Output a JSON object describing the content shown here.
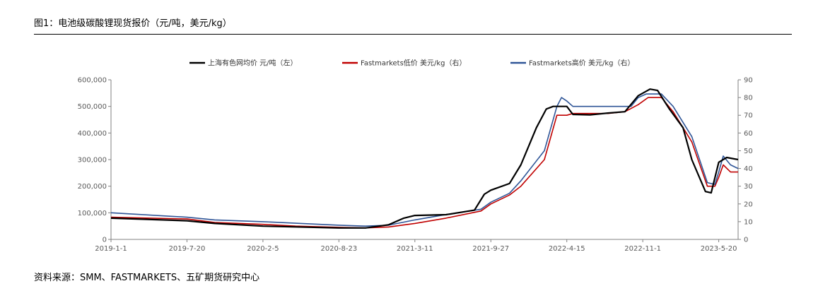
{
  "header": {
    "title": "图1：电池级碳酸锂现货报价（元/吨，美元/kg）"
  },
  "footer": {
    "source": "资料来源：SMM、FASTMARKETS、五矿期货研究中心"
  },
  "chart_data": {
    "type": "line",
    "title": "图1：电池级碳酸锂现货报价（元/吨，美元/kg）",
    "x_ticks": [
      "2019-1-1",
      "2019-7-20",
      "2020-2-5",
      "2020-8-23",
      "2021-3-11",
      "2021-9-27",
      "2022-4-15",
      "2022-11-1",
      "2023-5-20"
    ],
    "x_range": [
      "2019-01-01",
      "2023-07-10"
    ],
    "y_left": {
      "min": 0,
      "max": 600000,
      "ticks": [
        "0",
        "100,000",
        "200,000",
        "300,000",
        "400,000",
        "500,000",
        "600,000"
      ]
    },
    "y_right": {
      "min": 0,
      "max": 90,
      "ticks": [
        "0",
        "10",
        "20",
        "30",
        "40",
        "50",
        "60",
        "70",
        "80",
        "90"
      ]
    },
    "legend_position": "top",
    "grid": false,
    "series": [
      {
        "name": "上海有色网均价 元/吨（左）",
        "axis": "left",
        "color": "#000000",
        "points": [
          [
            "2019-01-01",
            80000
          ],
          [
            "2019-07-20",
            70000
          ],
          [
            "2019-10-01",
            60000
          ],
          [
            "2020-02-05",
            50000
          ],
          [
            "2020-05-01",
            47000
          ],
          [
            "2020-08-23",
            43000
          ],
          [
            "2020-11-01",
            43000
          ],
          [
            "2021-01-01",
            55000
          ],
          [
            "2021-02-10",
            80000
          ],
          [
            "2021-03-11",
            90000
          ],
          [
            "2021-06-01",
            93000
          ],
          [
            "2021-08-15",
            110000
          ],
          [
            "2021-09-10",
            170000
          ],
          [
            "2021-09-27",
            185000
          ],
          [
            "2021-11-15",
            210000
          ],
          [
            "2021-12-15",
            280000
          ],
          [
            "2022-01-25",
            420000
          ],
          [
            "2022-02-20",
            490000
          ],
          [
            "2022-03-10",
            500000
          ],
          [
            "2022-04-15",
            500000
          ],
          [
            "2022-05-01",
            470000
          ],
          [
            "2022-06-15",
            468000
          ],
          [
            "2022-08-01",
            475000
          ],
          [
            "2022-09-15",
            480000
          ],
          [
            "2022-10-20",
            540000
          ],
          [
            "2022-11-20",
            565000
          ],
          [
            "2022-12-10",
            560000
          ],
          [
            "2023-01-10",
            490000
          ],
          [
            "2023-02-15",
            420000
          ],
          [
            "2023-03-10",
            300000
          ],
          [
            "2023-04-15",
            180000
          ],
          [
            "2023-04-30",
            175000
          ],
          [
            "2023-05-20",
            290000
          ],
          [
            "2023-06-10",
            308000
          ],
          [
            "2023-07-10",
            300000
          ]
        ]
      },
      {
        "name": "Fastmarkets低价 美元/kg（右）",
        "axis": "right",
        "color": "#c00000",
        "points": [
          [
            "2019-01-01",
            12.5
          ],
          [
            "2019-07-20",
            11.5
          ],
          [
            "2019-10-01",
            9.5
          ],
          [
            "2020-02-05",
            8.5
          ],
          [
            "2020-05-01",
            7.5
          ],
          [
            "2020-08-23",
            6.8
          ],
          [
            "2020-11-01",
            6.5
          ],
          [
            "2021-01-01",
            7
          ],
          [
            "2021-03-11",
            9
          ],
          [
            "2021-06-01",
            12
          ],
          [
            "2021-09-01",
            16
          ],
          [
            "2021-09-27",
            20
          ],
          [
            "2021-11-15",
            25
          ],
          [
            "2021-12-15",
            30
          ],
          [
            "2022-02-15",
            45
          ],
          [
            "2022-03-20",
            70
          ],
          [
            "2022-04-15",
            70
          ],
          [
            "2022-05-01",
            71
          ],
          [
            "2022-08-01",
            71
          ],
          [
            "2022-09-15",
            72
          ],
          [
            "2022-10-20",
            76
          ],
          [
            "2022-11-15",
            80
          ],
          [
            "2022-12-20",
            80
          ],
          [
            "2023-01-20",
            72
          ],
          [
            "2023-03-10",
            55
          ],
          [
            "2023-04-20",
            30
          ],
          [
            "2023-05-10",
            30
          ],
          [
            "2023-05-20",
            35
          ],
          [
            "2023-06-01",
            42
          ],
          [
            "2023-06-20",
            38
          ],
          [
            "2023-07-10",
            38
          ]
        ]
      },
      {
        "name": "Fastmarkets高价 美元/kg（右）",
        "axis": "right",
        "color": "#2f5597",
        "points": [
          [
            "2019-01-01",
            15
          ],
          [
            "2019-07-20",
            12.5
          ],
          [
            "2019-10-01",
            11
          ],
          [
            "2020-02-05",
            10
          ],
          [
            "2020-08-23",
            8
          ],
          [
            "2020-11-01",
            7.5
          ],
          [
            "2021-01-01",
            8
          ],
          [
            "2021-03-11",
            11
          ],
          [
            "2021-06-01",
            14
          ],
          [
            "2021-09-01",
            17
          ],
          [
            "2021-09-27",
            21
          ],
          [
            "2021-11-15",
            26
          ],
          [
            "2021-12-15",
            33
          ],
          [
            "2022-02-15",
            50
          ],
          [
            "2022-03-20",
            75
          ],
          [
            "2022-04-01",
            80
          ],
          [
            "2022-04-15",
            78
          ],
          [
            "2022-05-01",
            75
          ],
          [
            "2022-10-01",
            75
          ],
          [
            "2022-10-20",
            80
          ],
          [
            "2022-11-10",
            82
          ],
          [
            "2022-12-20",
            82
          ],
          [
            "2023-01-20",
            75
          ],
          [
            "2023-03-10",
            58
          ],
          [
            "2023-04-20",
            32
          ],
          [
            "2023-05-10",
            31
          ],
          [
            "2023-05-20",
            38
          ],
          [
            "2023-06-01",
            47
          ],
          [
            "2023-06-20",
            42
          ],
          [
            "2023-07-10",
            40
          ]
        ]
      }
    ]
  }
}
